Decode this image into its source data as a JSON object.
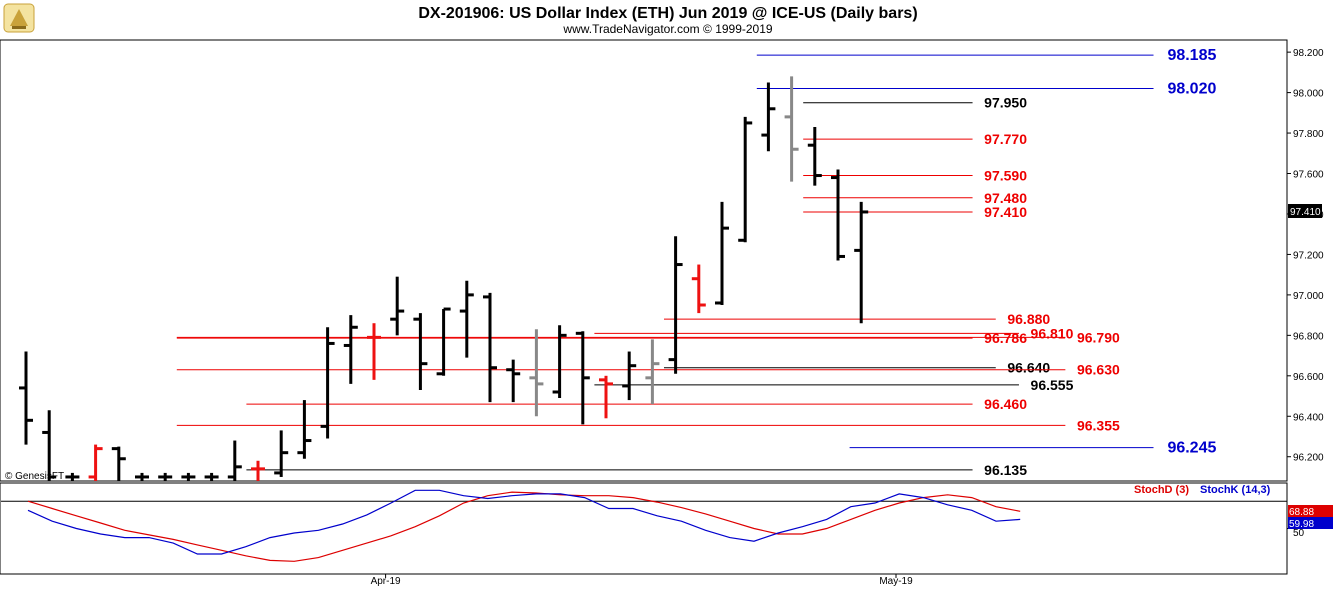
{
  "header": {
    "title": "DX-201906:  US Dollar Index (ETH) Jun 2019 @ ICE-US  (Daily bars)",
    "subtitle": "www.TradeNavigator.com © 1999-2019",
    "watermark": "© GenesisFT"
  },
  "colors": {
    "bar": "#000000",
    "up": "#33dd33",
    "down": "#ee1111",
    "neutral": "#888888",
    "red_level": "#ee0000",
    "black_level": "#000000",
    "blue_level": "#0000cc",
    "stoch_d": "#dd0000",
    "stoch_k": "#0000cc"
  },
  "chart_data": [
    {
      "type": "ohlc",
      "ylim": [
        96.08,
        98.26
      ],
      "yticks": [
        "98.200",
        "98.000",
        "97.800",
        "97.600",
        "97.400",
        "97.200",
        "97.000",
        "96.800",
        "96.600",
        "96.400",
        "96.200"
      ],
      "xticks": [
        {
          "label": "Apr-19",
          "index": 15.5
        },
        {
          "label": "May-19",
          "index": 37.5
        }
      ],
      "last_price": "97.410",
      "bars": [
        {
          "o": 96.54,
          "h": 96.72,
          "l": 96.26,
          "c": 96.38,
          "color": "black"
        },
        {
          "o": 96.32,
          "h": 96.43,
          "l": 96.08,
          "c": 96.1,
          "color": "black"
        },
        {
          "o": 96.1,
          "h": 96.12,
          "l": 96.08,
          "c": 96.1,
          "color": "black"
        },
        {
          "o": 96.1,
          "h": 96.26,
          "l": 96.08,
          "c": 96.24,
          "color": "red"
        },
        {
          "o": 96.24,
          "h": 96.25,
          "l": 96.08,
          "c": 96.19,
          "color": "black"
        },
        {
          "o": 96.1,
          "h": 96.12,
          "l": 96.08,
          "c": 96.1,
          "color": "black"
        },
        {
          "o": 96.1,
          "h": 96.12,
          "l": 96.08,
          "c": 96.1,
          "color": "black"
        },
        {
          "o": 96.1,
          "h": 96.12,
          "l": 96.08,
          "c": 96.1,
          "color": "black"
        },
        {
          "o": 96.1,
          "h": 96.12,
          "l": 96.08,
          "c": 96.1,
          "color": "black"
        },
        {
          "o": 96.1,
          "h": 96.28,
          "l": 96.08,
          "c": 96.15,
          "color": "black"
        },
        {
          "o": 96.14,
          "h": 96.18,
          "l": 96.08,
          "c": 96.14,
          "color": "red"
        },
        {
          "o": 96.12,
          "h": 96.33,
          "l": 96.1,
          "c": 96.22,
          "color": "black"
        },
        {
          "o": 96.22,
          "h": 96.48,
          "l": 96.19,
          "c": 96.28,
          "color": "black"
        },
        {
          "o": 96.35,
          "h": 96.84,
          "l": 96.29,
          "c": 96.76,
          "color": "black"
        },
        {
          "o": 96.75,
          "h": 96.9,
          "l": 96.56,
          "c": 96.84,
          "color": "black"
        },
        {
          "o": 96.79,
          "h": 96.86,
          "l": 96.58,
          "c": 96.79,
          "color": "red"
        },
        {
          "o": 96.88,
          "h": 97.09,
          "l": 96.8,
          "c": 96.92,
          "color": "black"
        },
        {
          "o": 96.88,
          "h": 96.91,
          "l": 96.53,
          "c": 96.66,
          "color": "black"
        },
        {
          "o": 96.61,
          "h": 96.93,
          "l": 96.6,
          "c": 96.93,
          "color": "black"
        },
        {
          "o": 96.92,
          "h": 97.07,
          "l": 96.69,
          "c": 97.0,
          "color": "black"
        },
        {
          "o": 96.99,
          "h": 97.01,
          "l": 96.47,
          "c": 96.64,
          "color": "black"
        },
        {
          "o": 96.63,
          "h": 96.68,
          "l": 96.47,
          "c": 96.61,
          "color": "black"
        },
        {
          "o": 96.59,
          "h": 96.83,
          "l": 96.4,
          "c": 96.56,
          "color": "gray"
        },
        {
          "o": 96.52,
          "h": 96.85,
          "l": 96.49,
          "c": 96.8,
          "color": "black"
        },
        {
          "o": 96.81,
          "h": 96.82,
          "l": 96.36,
          "c": 96.59,
          "color": "black"
        },
        {
          "o": 96.58,
          "h": 96.6,
          "l": 96.39,
          "c": 96.56,
          "color": "red"
        },
        {
          "o": 96.55,
          "h": 96.72,
          "l": 96.48,
          "c": 96.65,
          "color": "black"
        },
        {
          "o": 96.59,
          "h": 96.78,
          "l": 96.46,
          "c": 96.66,
          "color": "gray"
        },
        {
          "o": 96.68,
          "h": 97.29,
          "l": 96.61,
          "c": 97.15,
          "color": "black"
        },
        {
          "o": 97.08,
          "h": 97.15,
          "l": 96.91,
          "c": 96.95,
          "color": "red"
        },
        {
          "o": 96.96,
          "h": 97.46,
          "l": 96.95,
          "c": 97.33,
          "color": "black"
        },
        {
          "o": 97.27,
          "h": 97.88,
          "l": 97.26,
          "c": 97.85,
          "color": "black"
        },
        {
          "o": 97.79,
          "h": 98.05,
          "l": 97.71,
          "c": 97.92,
          "color": "black"
        },
        {
          "o": 97.88,
          "h": 98.08,
          "l": 97.56,
          "c": 97.72,
          "color": "gray"
        },
        {
          "o": 97.74,
          "h": 97.83,
          "l": 97.54,
          "c": 97.59,
          "color": "black"
        },
        {
          "o": 97.58,
          "h": 97.62,
          "l": 97.17,
          "c": 97.19,
          "color": "black"
        },
        {
          "o": 97.22,
          "h": 97.46,
          "l": 96.86,
          "c": 97.41,
          "color": "black"
        }
      ],
      "levels": [
        {
          "value": 98.185,
          "label": "98.185",
          "color": "blue",
          "from": 31.5,
          "to": 48.6,
          "label_at": 49.2,
          "big": true
        },
        {
          "value": 98.02,
          "label": "98.020",
          "color": "blue",
          "from": 31.5,
          "to": 48.6,
          "label_at": 49.2,
          "big": true
        },
        {
          "value": 97.95,
          "label": "97.950",
          "color": "black",
          "from": 33.5,
          "to": 40.8,
          "label_at": 41.3
        },
        {
          "value": 97.77,
          "label": "97.770",
          "color": "red",
          "from": 33.5,
          "to": 40.8,
          "label_at": 41.3
        },
        {
          "value": 97.59,
          "label": "97.590",
          "color": "red",
          "from": 33.5,
          "to": 40.8,
          "label_at": 41.3
        },
        {
          "value": 97.48,
          "label": "97.480",
          "color": "red",
          "from": 33.5,
          "to": 40.8,
          "label_at": 41.3
        },
        {
          "value": 97.41,
          "label": "97.410",
          "color": "red",
          "from": 33.5,
          "to": 40.8,
          "label_at": 41.3
        },
        {
          "value": 96.88,
          "label": "96.880",
          "color": "red",
          "from": 27.5,
          "to": 41.8,
          "label_at": 42.3
        },
        {
          "value": 96.81,
          "label": "96.810",
          "color": "red",
          "from": 24.5,
          "to": 42.8,
          "label_at": 43.3
        },
        {
          "value": 96.79,
          "label": "96.790",
          "color": "red",
          "from": 6.5,
          "to": 44.8,
          "label_at": 45.3
        },
        {
          "value": 96.786,
          "label": "96.786",
          "color": "red",
          "from": 6.5,
          "to": 40.8,
          "label_at": 41.3
        },
        {
          "value": 96.64,
          "label": "96.640",
          "color": "black",
          "from": 27.5,
          "to": 41.8,
          "label_at": 42.3
        },
        {
          "value": 96.63,
          "label": "96.630",
          "color": "red",
          "from": 6.5,
          "to": 44.8,
          "label_at": 45.3
        },
        {
          "value": 96.555,
          "label": "96.555",
          "color": "black",
          "from": 24.5,
          "to": 42.8,
          "label_at": 43.3
        },
        {
          "value": 96.46,
          "label": "96.460",
          "color": "red",
          "from": 9.5,
          "to": 40.8,
          "label_at": 41.3
        },
        {
          "value": 96.355,
          "label": "96.355",
          "color": "red",
          "from": 6.5,
          "to": 44.8,
          "label_at": 45.3
        },
        {
          "value": 96.245,
          "label": "96.245",
          "color": "blue",
          "from": 35.5,
          "to": 48.6,
          "label_at": 49.2,
          "big": true
        },
        {
          "value": 96.135,
          "label": "96.135",
          "color": "black",
          "from": 9.5,
          "to": 40.8,
          "label_at": 41.3
        }
      ]
    },
    {
      "type": "line",
      "ylim": [
        0,
        100
      ],
      "yticks": [
        "50"
      ],
      "legend": [
        "StochD (3)",
        "StochK (14,3)"
      ],
      "readouts": [
        "68.88",
        "59.98"
      ],
      "series": [
        {
          "name": "StochD (3)",
          "values": [
            80,
            72,
            64,
            56,
            48,
            43,
            38,
            32,
            26,
            20,
            15,
            14,
            18,
            26,
            34,
            42,
            52,
            64,
            78,
            86,
            90,
            89,
            87,
            86,
            86,
            84,
            79,
            73,
            66,
            58,
            50,
            44,
            44,
            50,
            60,
            70,
            78,
            84,
            87,
            84,
            74,
            68.88
          ]
        },
        {
          "name": "StochK (14,3)",
          "values": [
            70,
            58,
            50,
            44,
            40,
            40,
            34,
            22,
            22,
            30,
            40,
            45,
            48,
            55,
            65,
            78,
            92,
            92,
            86,
            83,
            86,
            88,
            88,
            84,
            72,
            72,
            64,
            58,
            48,
            40,
            36,
            45,
            52,
            60,
            74,
            78,
            88,
            84,
            76,
            70,
            58,
            59.98
          ]
        }
      ]
    }
  ]
}
